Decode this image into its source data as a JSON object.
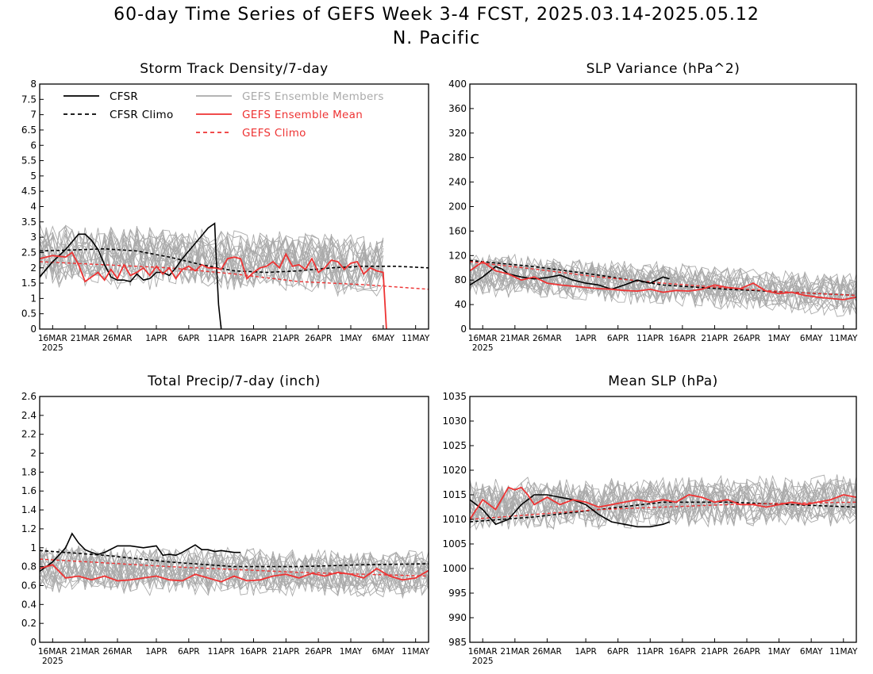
{
  "figure": {
    "title_line1": "60-day Time Series of GEFS Week 3-4 FCST, 2025.03.14-2025.05.12",
    "title_line2": "N. Pacific"
  },
  "colors": {
    "cfsr": "#000000",
    "members": "#aaaaaa",
    "ens_mean": "#ee3333",
    "grid_text": "#000000"
  },
  "legend": {
    "cfsr": "CFSR",
    "cfsr_climo": "CFSR Climo",
    "members": "GEFS Ensemble Members",
    "ens_mean": "GEFS Ensemble Mean",
    "gefs_climo": "GEFS Climo"
  },
  "x_axis": {
    "days": 60,
    "tick_labels": [
      "16MAR",
      "21MAR",
      "26MAR",
      "1APR",
      "6APR",
      "11APR",
      "16APR",
      "21APR",
      "26APR",
      "1MAY",
      "6MAY",
      "11MAY"
    ],
    "tick_days": [
      2,
      7,
      12,
      18,
      23,
      28,
      33,
      38,
      43,
      48,
      53,
      58
    ],
    "year_label": "2025"
  },
  "chart_data": [
    {
      "type": "line",
      "title": "Storm Track Density/7-day",
      "ylim": [
        0,
        8
      ],
      "yticks": [
        "0",
        "0.5",
        "1",
        "1.5",
        "2",
        "2.5",
        "3",
        "3.5",
        "4",
        "4.5",
        "5",
        "5.5",
        "6",
        "6.5",
        "7",
        "7.5",
        "8"
      ],
      "legend": true,
      "member_band": {
        "count": 21,
        "center": [
          2.4,
          2.0
        ],
        "spread": 0.9,
        "end_day": 53.5
      },
      "series": [
        {
          "name": "CFSR",
          "style": "black-solid",
          "x": [
            0,
            2,
            4,
            6,
            7,
            8,
            9,
            10,
            11,
            12,
            13,
            14,
            15,
            16,
            17,
            18,
            19,
            20,
            21,
            22,
            24,
            26,
            27,
            27.3,
            27.6,
            28
          ],
          "y": [
            1.7,
            2.2,
            2.6,
            3.1,
            3.1,
            2.9,
            2.6,
            2.1,
            1.7,
            1.6,
            1.6,
            1.55,
            1.8,
            1.6,
            1.65,
            1.85,
            1.85,
            1.75,
            2.0,
            2.3,
            2.8,
            3.3,
            3.45,
            2.0,
            0.8,
            0
          ]
        },
        {
          "name": "CFSR Climo",
          "style": "black-dashed",
          "x": [
            0,
            5,
            10,
            15,
            20,
            25,
            30,
            35,
            40,
            45,
            50,
            55,
            60
          ],
          "y": [
            2.55,
            2.58,
            2.62,
            2.55,
            2.35,
            2.1,
            1.9,
            1.85,
            1.9,
            2.0,
            2.05,
            2.05,
            2.0
          ]
        },
        {
          "name": "GEFS Ensemble Mean",
          "style": "red-solid",
          "x": [
            0,
            2,
            4,
            5,
            6,
            7,
            8,
            9,
            10,
            11,
            12,
            13,
            14,
            15,
            16,
            17,
            18,
            19,
            20,
            21,
            22,
            23,
            24,
            25,
            26,
            27,
            28,
            29,
            30,
            31,
            32,
            33,
            34,
            35,
            36,
            37,
            38,
            39,
            40,
            41,
            42,
            43,
            44,
            45,
            46,
            47,
            48,
            49,
            50,
            51,
            52,
            53,
            53.5
          ],
          "y": [
            2.3,
            2.4,
            2.35,
            2.5,
            2.1,
            1.55,
            1.7,
            1.85,
            1.6,
            1.95,
            1.65,
            2.1,
            1.75,
            1.85,
            2.0,
            1.75,
            2.05,
            1.8,
            2.0,
            1.65,
            1.95,
            2.05,
            1.9,
            2.1,
            2.0,
            2.0,
            1.95,
            2.3,
            2.35,
            2.3,
            1.65,
            1.85,
            2.0,
            2.05,
            2.2,
            2.0,
            2.45,
            2.05,
            2.1,
            1.95,
            2.3,
            1.85,
            2.0,
            2.25,
            2.2,
            1.95,
            2.15,
            2.2,
            1.8,
            2.0,
            1.9,
            1.85,
            0
          ]
        },
        {
          "name": "GEFS Climo",
          "style": "red-dashed",
          "x": [
            0,
            10,
            20,
            30,
            40,
            50,
            60
          ],
          "y": [
            2.2,
            2.1,
            2.0,
            1.8,
            1.55,
            1.45,
            1.3
          ]
        }
      ]
    },
    {
      "type": "line",
      "title": "SLP Variance (hPa^2)",
      "ylim": [
        0,
        400
      ],
      "yticks": [
        "0",
        "40",
        "80",
        "120",
        "160",
        "200",
        "240",
        "280",
        "320",
        "360",
        "400"
      ],
      "legend": false,
      "member_band": {
        "count": 21,
        "center": [
          90,
          55
        ],
        "spread": 30,
        "end_day": 60
      },
      "series": [
        {
          "name": "CFSR",
          "style": "black-solid",
          "x": [
            0,
            2,
            4,
            5,
            6,
            8,
            10,
            12,
            14,
            16,
            18,
            20,
            22,
            24,
            26,
            28,
            30,
            31
          ],
          "y": [
            72,
            85,
            102,
            98,
            90,
            85,
            82,
            84,
            88,
            80,
            75,
            72,
            65,
            72,
            80,
            75,
            85,
            82
          ]
        },
        {
          "name": "CFSR Climo",
          "style": "black-dashed",
          "x": [
            0,
            10,
            20,
            30,
            40,
            50,
            60
          ],
          "y": [
            112,
            102,
            88,
            72,
            65,
            60,
            55
          ]
        },
        {
          "name": "GEFS Ensemble Mean",
          "style": "red-solid",
          "x": [
            0,
            2,
            4,
            6,
            8,
            10,
            12,
            14,
            16,
            18,
            20,
            22,
            24,
            26,
            28,
            30,
            32,
            34,
            36,
            38,
            40,
            42,
            44,
            46,
            48,
            50,
            52,
            54,
            56,
            58,
            60
          ],
          "y": [
            95,
            110,
            95,
            90,
            80,
            85,
            75,
            72,
            70,
            68,
            66,
            65,
            63,
            62,
            65,
            60,
            63,
            62,
            65,
            72,
            68,
            66,
            75,
            62,
            58,
            60,
            55,
            52,
            50,
            48,
            52
          ]
        },
        {
          "name": "GEFS Climo",
          "style": "red-dashed",
          "x": [
            0,
            10,
            20,
            30,
            40,
            50,
            60
          ],
          "y": [
            110,
            98,
            85,
            75,
            67,
            60,
            55
          ]
        }
      ]
    },
    {
      "type": "line",
      "title": "Total Precip/7-day (inch)",
      "ylim": [
        0,
        2.6
      ],
      "yticks": [
        "0",
        "0.2",
        "0.4",
        "0.6",
        "0.8",
        "1",
        "1.2",
        "1.4",
        "1.6",
        "1.8",
        "2",
        "2.2",
        "2.4",
        "2.6"
      ],
      "legend": false,
      "member_band": {
        "count": 21,
        "center": [
          0.78,
          0.72
        ],
        "spread": 0.22,
        "end_day": 60
      },
      "series": [
        {
          "name": "CFSR",
          "style": "black-solid",
          "x": [
            0,
            2,
            4,
            5,
            6,
            7,
            8,
            9,
            10,
            12,
            14,
            16,
            18,
            19,
            20,
            21,
            22,
            24,
            25,
            26,
            27,
            28,
            30,
            31
          ],
          "y": [
            0.75,
            0.85,
            1.0,
            1.15,
            1.05,
            0.98,
            0.95,
            0.93,
            0.95,
            1.02,
            1.02,
            1.0,
            1.02,
            0.92,
            0.93,
            0.92,
            0.95,
            1.03,
            0.98,
            0.98,
            0.96,
            0.97,
            0.95,
            0.95
          ]
        },
        {
          "name": "CFSR Climo",
          "style": "black-dashed",
          "x": [
            0,
            10,
            20,
            30,
            40,
            50,
            60
          ],
          "y": [
            0.97,
            0.92,
            0.85,
            0.8,
            0.8,
            0.82,
            0.83
          ]
        },
        {
          "name": "GEFS Ensemble Mean",
          "style": "red-solid",
          "x": [
            0,
            2,
            4,
            6,
            8,
            10,
            12,
            14,
            16,
            18,
            20,
            22,
            24,
            26,
            28,
            30,
            32,
            34,
            36,
            38,
            40,
            42,
            44,
            46,
            48,
            50,
            52,
            54,
            56,
            58,
            60
          ],
          "y": [
            0.78,
            0.82,
            0.68,
            0.7,
            0.66,
            0.7,
            0.65,
            0.66,
            0.68,
            0.7,
            0.66,
            0.65,
            0.72,
            0.68,
            0.64,
            0.7,
            0.65,
            0.66,
            0.7,
            0.72,
            0.68,
            0.73,
            0.7,
            0.74,
            0.72,
            0.68,
            0.78,
            0.7,
            0.66,
            0.68,
            0.76
          ]
        },
        {
          "name": "GEFS Climo",
          "style": "red-dashed",
          "x": [
            0,
            10,
            20,
            30,
            40,
            50,
            60
          ],
          "y": [
            0.88,
            0.84,
            0.8,
            0.77,
            0.74,
            0.72,
            0.7
          ]
        }
      ]
    },
    {
      "type": "line",
      "title": "Mean SLP (hPa)",
      "ylim": [
        985,
        1035
      ],
      "yticks": [
        "985",
        "990",
        "995",
        "1000",
        "1005",
        "1010",
        "1015",
        "1020",
        "1025",
        "1030",
        "1035"
      ],
      "legend": false,
      "member_band": {
        "count": 21,
        "center": [
          1013,
          1014
        ],
        "spread": 4.5,
        "end_day": 60
      },
      "series": [
        {
          "name": "CFSR",
          "style": "black-solid",
          "x": [
            0,
            2,
            4,
            6,
            8,
            10,
            12,
            14,
            16,
            18,
            20,
            22,
            24,
            26,
            28,
            30,
            31
          ],
          "y": [
            1014,
            1012,
            1009,
            1010,
            1013,
            1015,
            1015,
            1014.5,
            1014,
            1013,
            1011,
            1009.5,
            1009,
            1008.5,
            1008.5,
            1009,
            1009.5
          ]
        },
        {
          "name": "CFSR Climo",
          "style": "black-dashed",
          "x": [
            0,
            10,
            20,
            30,
            40,
            50,
            60
          ],
          "y": [
            1009.5,
            1010.5,
            1012,
            1013.5,
            1013.5,
            1013,
            1012.5
          ]
        },
        {
          "name": "GEFS Ensemble Mean",
          "style": "red-solid",
          "x": [
            0,
            2,
            4,
            6,
            7,
            8,
            9,
            10,
            12,
            14,
            16,
            18,
            20,
            22,
            24,
            26,
            28,
            30,
            32,
            34,
            36,
            38,
            40,
            42,
            44,
            46,
            48,
            50,
            52,
            54,
            56,
            58,
            60
          ],
          "y": [
            1010,
            1014,
            1012,
            1016.5,
            1016,
            1016.5,
            1015,
            1013,
            1014.5,
            1013,
            1014,
            1013.5,
            1012.5,
            1013,
            1013.5,
            1014,
            1013.5,
            1014,
            1013.5,
            1015,
            1014.5,
            1013.5,
            1014,
            1013,
            1013,
            1012.5,
            1013,
            1013.5,
            1013,
            1013.5,
            1014,
            1015,
            1014.5
          ]
        },
        {
          "name": "GEFS Climo",
          "style": "red-dashed",
          "x": [
            0,
            10,
            20,
            30,
            40,
            50,
            60
          ],
          "y": [
            1010,
            1011,
            1012,
            1012.5,
            1013,
            1013.3,
            1013.5
          ]
        }
      ]
    }
  ]
}
